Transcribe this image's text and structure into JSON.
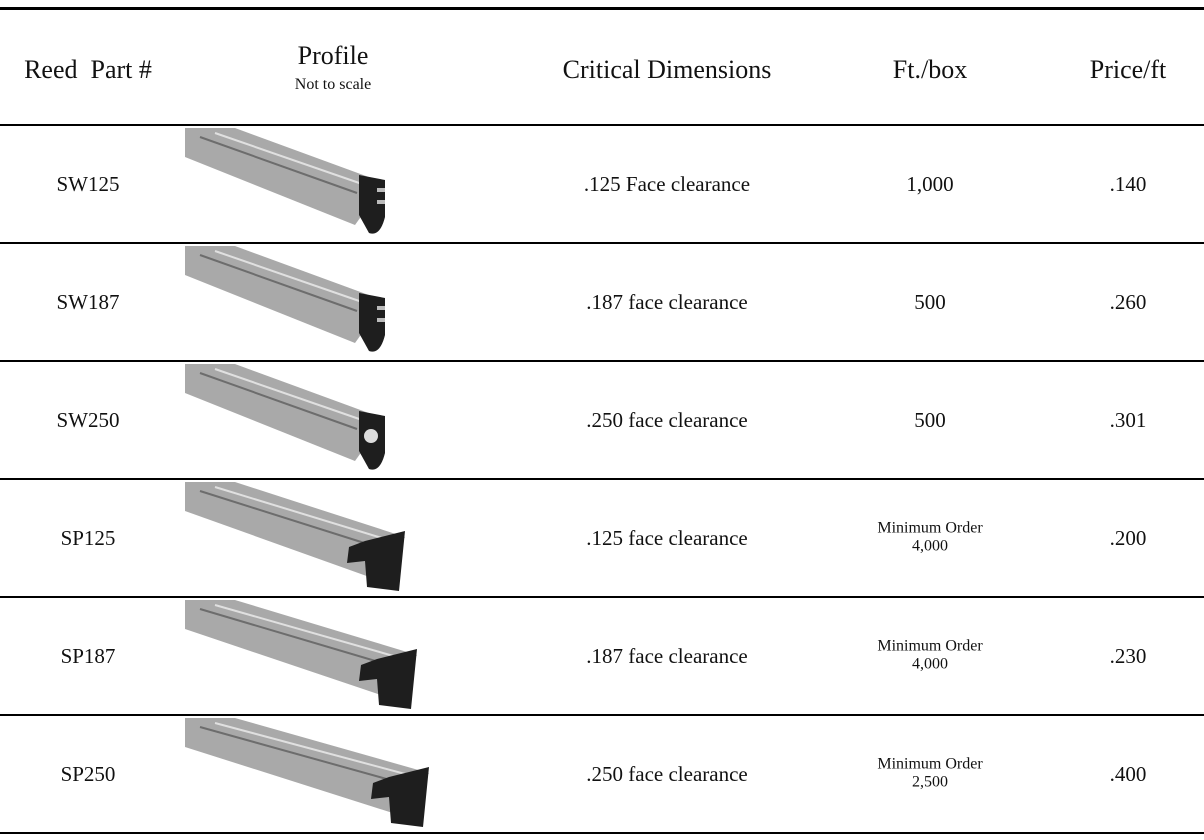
{
  "header": {
    "part": "Reed  Part #",
    "profile": "Profile",
    "profile_note": "Not to scale",
    "dimensions": "Critical Dimensions",
    "box": "Ft./box",
    "price": "Price/ft"
  },
  "table": {
    "rows": [
      {
        "part": "SW125",
        "dimension": ".125 Face clearance",
        "box": [
          "1,000"
        ],
        "price": ".140"
      },
      {
        "part": "SW187",
        "dimension": ".187 face clearance",
        "box": [
          "500"
        ],
        "price": ".260"
      },
      {
        "part": "SW250",
        "dimension": ".250 face clearance",
        "box": [
          "500"
        ],
        "price": ".301"
      },
      {
        "part": "SP125",
        "dimension": ".125 face clearance",
        "box": [
          "Minimum Order",
          "4,000"
        ],
        "price": ".200"
      },
      {
        "part": "SP187",
        "dimension": ".187 face clearance",
        "box": [
          "Minimum Order",
          "4,000"
        ],
        "price": ".230"
      },
      {
        "part": "SP250",
        "dimension": ".250 face clearance",
        "box": [
          "Minimum Order",
          "2,500"
        ],
        "price": ".400"
      }
    ]
  }
}
